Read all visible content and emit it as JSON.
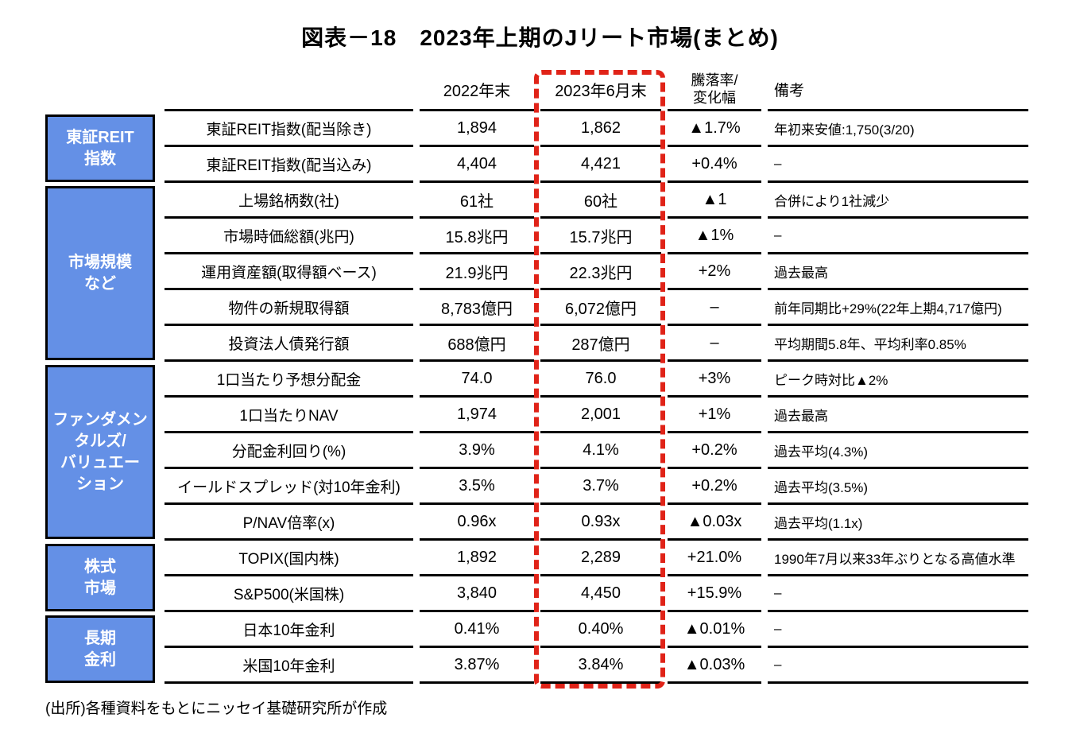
{
  "colors": {
    "group_box_fill": "#6490e6",
    "group_box_text": "#ffffff",
    "highlight_red": "#e02318",
    "text": "#000000",
    "grid_line": "#000000"
  },
  "chart_data": {
    "type": "table",
    "title": "図表－18　2023年上期のJリート市場(まとめ)",
    "columns": [
      "2022年末",
      "2023年6月末",
      "騰落率/\n変化幅",
      "備考"
    ],
    "highlighted_column": "2023年6月末",
    "groups": [
      {
        "label": "東証REIT\n指数",
        "rows": [
          {
            "label": "東証REIT指数(配当除き)",
            "v2022": "1,894",
            "v2023": "1,862",
            "change": "▲1.7%",
            "note": "年初来安値:1,750(3/20)"
          },
          {
            "label": "東証REIT指数(配当込み)",
            "v2022": "4,404",
            "v2023": "4,421",
            "change": "+0.4%",
            "note": "–"
          }
        ]
      },
      {
        "label": "市場規模\nなど",
        "rows": [
          {
            "label": "上場銘柄数(社)",
            "v2022": "61社",
            "v2023": "60社",
            "change": "▲1",
            "note": "合併により1社減少"
          },
          {
            "label": "市場時価総額(兆円)",
            "v2022": "15.8兆円",
            "v2023": "15.7兆円",
            "change": "▲1%",
            "note": "–"
          },
          {
            "label": "運用資産額(取得額ベース)",
            "v2022": "21.9兆円",
            "v2023": "22.3兆円",
            "change": "+2%",
            "note": "過去最高"
          },
          {
            "label": "物件の新規取得額",
            "v2022": "8,783億円",
            "v2023": "6,072億円",
            "change": "–",
            "note": "前年同期比+29%(22年上期4,717億円)"
          },
          {
            "label": "投資法人債発行額",
            "v2022": "688億円",
            "v2023": "287億円",
            "change": "–",
            "note": "平均期間5.8年、平均利率0.85%"
          }
        ]
      },
      {
        "label": "ファンダメン\nタルズ/\nバリュエー\nション",
        "rows": [
          {
            "label": "1口当たり予想分配金",
            "v2022": "74.0",
            "v2023": "76.0",
            "change": "+3%",
            "note": "ピーク時対比▲2%"
          },
          {
            "label": "1口当たりNAV",
            "v2022": "1,974",
            "v2023": "2,001",
            "change": "+1%",
            "note": "過去最高"
          },
          {
            "label": "分配金利回り(%)",
            "v2022": "3.9%",
            "v2023": "4.1%",
            "change": "+0.2%",
            "note": "過去平均(4.3%)"
          },
          {
            "label": "イールドスプレッド(対10年金利)",
            "v2022": "3.5%",
            "v2023": "3.7%",
            "change": "+0.2%",
            "note": "過去平均(3.5%)"
          },
          {
            "label": "P/NAV倍率(x)",
            "v2022": "0.96x",
            "v2023": "0.93x",
            "change": "▲0.03x",
            "note": "過去平均(1.1x)"
          }
        ]
      },
      {
        "label": "株式\n市場",
        "rows": [
          {
            "label": "TOPIX(国内株)",
            "v2022": "1,892",
            "v2023": "2,289",
            "change": "+21.0%",
            "note": "1990年7月以来33年ぶりとなる高値水準"
          },
          {
            "label": "S&P500(米国株)",
            "v2022": "3,840",
            "v2023": "4,450",
            "change": "+15.9%",
            "note": "–"
          }
        ]
      },
      {
        "label": "長期\n金利",
        "rows": [
          {
            "label": "日本10年金利",
            "v2022": "0.41%",
            "v2023": "0.40%",
            "change": "▲0.01%",
            "note": "–"
          },
          {
            "label": "米国10年金利",
            "v2022": "3.87%",
            "v2023": "3.84%",
            "change": "▲0.03%",
            "note": "–"
          }
        ]
      }
    ],
    "source": "(出所)各種資料をもとにニッセイ基礎研究所が作成"
  }
}
